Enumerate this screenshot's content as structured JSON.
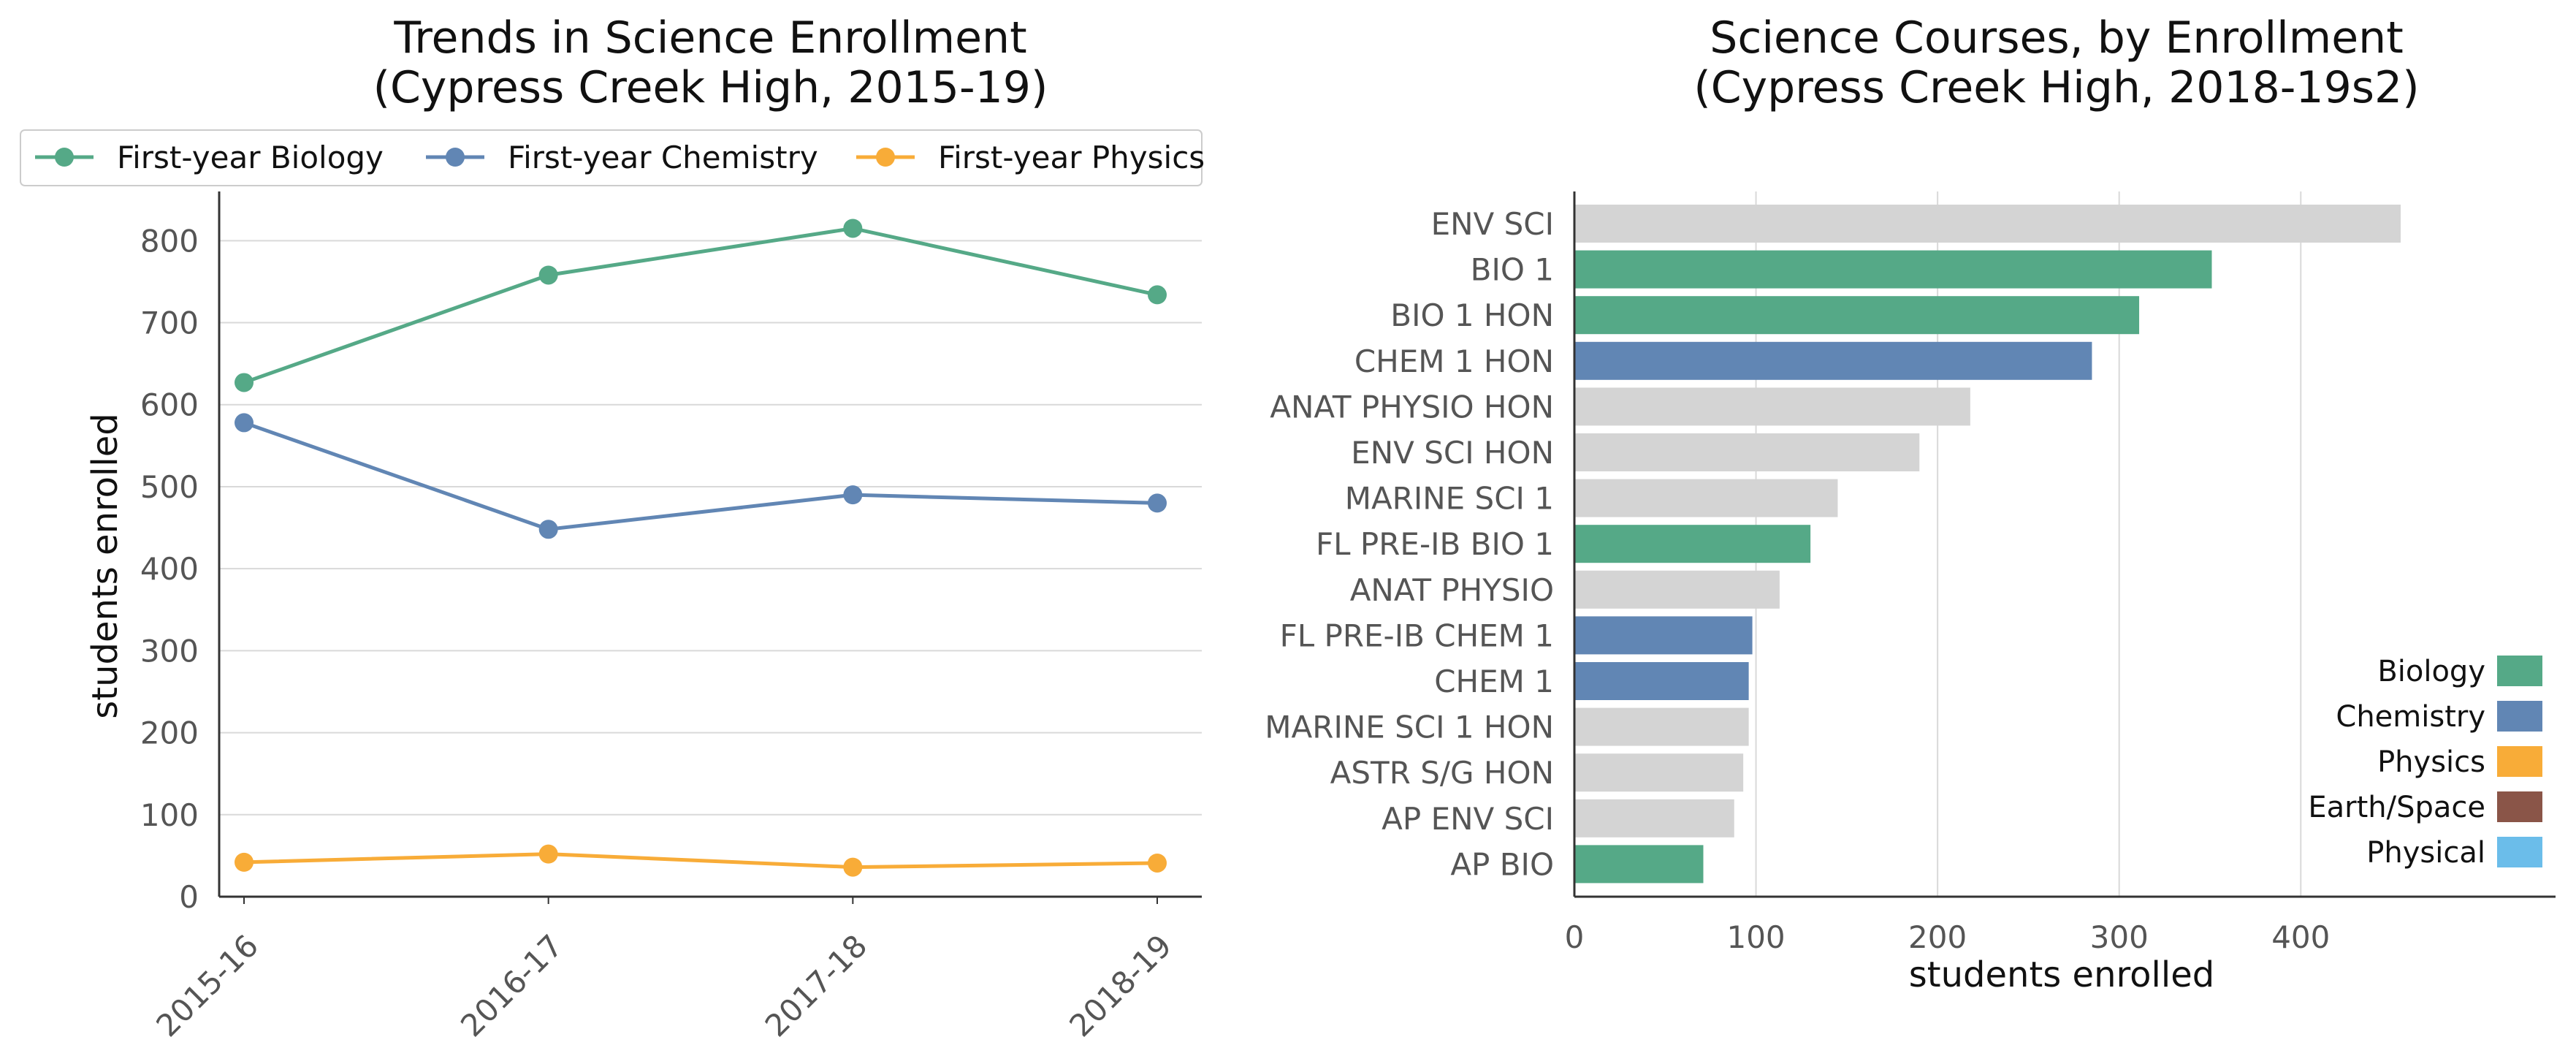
{
  "charts": [
    {
      "type": "line",
      "title_lines": [
        "Trends in Science Enrollment",
        "(Cypress Creek High, 2015-19)"
      ],
      "xlabel": "",
      "ylabel": "students enrolled",
      "categories": [
        "2015-16",
        "2016-17",
        "2017-18",
        "2018-19"
      ],
      "ylim": [
        0,
        860
      ],
      "yticks": [
        0,
        100,
        200,
        300,
        400,
        500,
        600,
        700,
        800
      ],
      "grid": "horizontal",
      "legend_position": "top",
      "series": [
        {
          "name": "First-year Biology",
          "color": "#55a987",
          "values": [
            627,
            758,
            815,
            734
          ]
        },
        {
          "name": "First-year Chemistry",
          "color": "#6186b4",
          "values": [
            578,
            448,
            490,
            480
          ]
        },
        {
          "name": "First-year Physics",
          "color": "#f8ac38",
          "values": [
            42,
            52,
            36,
            41
          ]
        }
      ]
    },
    {
      "type": "bar",
      "orientation": "horizontal",
      "title_lines": [
        "Science Courses, by Enrollment",
        "(Cypress Creek High, 2018-19s2)"
      ],
      "xlabel": "students enrolled",
      "ylabel": "",
      "xlim": [
        0,
        478
      ],
      "xticks": [
        0,
        100,
        200,
        300,
        400
      ],
      "grid": "vertical",
      "legend_position": "lower-right",
      "legend": [
        {
          "name": "Biology",
          "color": "#55a987"
        },
        {
          "name": "Chemistry",
          "color": "#6186b4"
        },
        {
          "name": "Physics",
          "color": "#f8ac38"
        },
        {
          "name": "Earth/Space",
          "color": "#8a5548"
        },
        {
          "name": "Physical",
          "color": "#6bbdea"
        }
      ],
      "other_color": "#d4d4d4",
      "categories": [
        "ENV SCI",
        "BIO 1",
        "BIO 1 HON",
        "CHEM 1 HON",
        "ANAT PHYSIO HON",
        "ENV SCI HON",
        "MARINE SCI 1",
        "FL PRE-IB BIO 1",
        "ANAT PHYSIO",
        "FL PRE-IB CHEM 1",
        "CHEM 1",
        "MARINE SCI 1 HON",
        "ASTR S/G HON",
        "AP ENV SCI",
        "AP BIO"
      ],
      "values": [
        455,
        351,
        311,
        285,
        218,
        190,
        145,
        130,
        113,
        98,
        96,
        96,
        93,
        88,
        71
      ],
      "bar_colors": [
        "#d4d4d4",
        "#55a987",
        "#55a987",
        "#6186b4",
        "#d4d4d4",
        "#d4d4d4",
        "#d4d4d4",
        "#55a987",
        "#d4d4d4",
        "#6186b4",
        "#6186b4",
        "#d4d4d4",
        "#d4d4d4",
        "#d4d4d4",
        "#55a987"
      ]
    }
  ]
}
